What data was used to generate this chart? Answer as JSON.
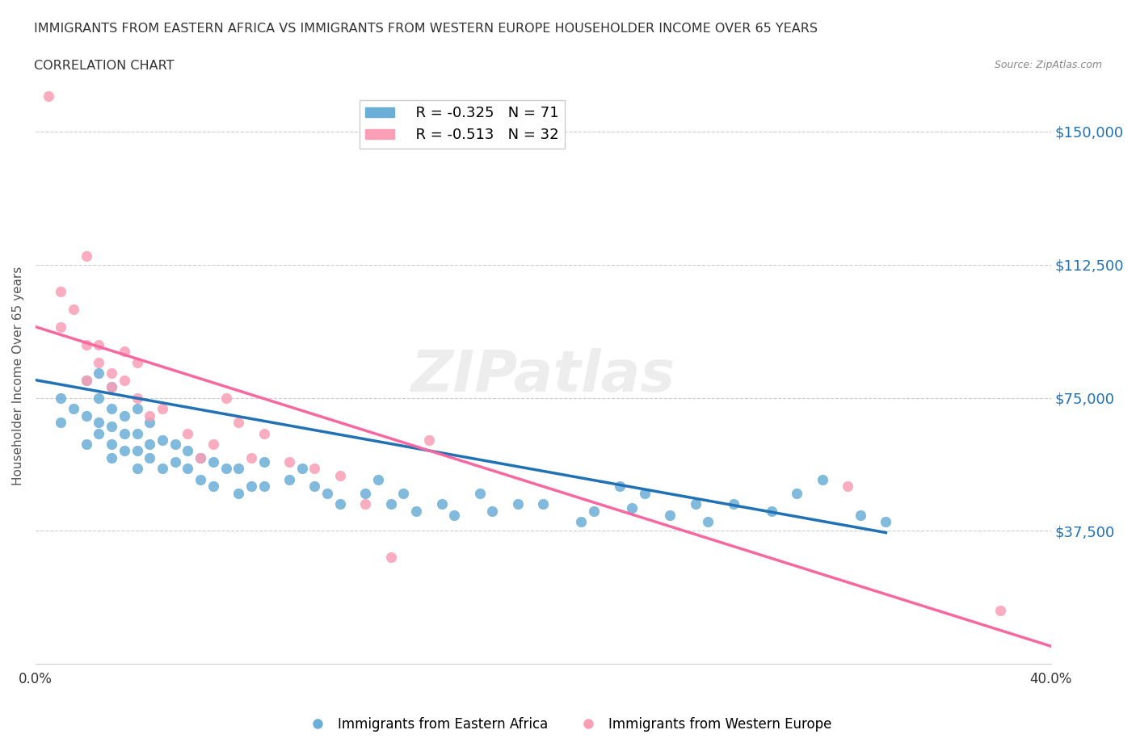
{
  "title_line1": "IMMIGRANTS FROM EASTERN AFRICA VS IMMIGRANTS FROM WESTERN EUROPE HOUSEHOLDER INCOME OVER 65 YEARS",
  "title_line2": "CORRELATION CHART",
  "source_text": "Source: ZipAtlas.com",
  "xlabel": "",
  "ylabel": "Householder Income Over 65 years",
  "xlim": [
    0.0,
    0.4
  ],
  "ylim": [
    0,
    162500
  ],
  "yticks": [
    0,
    37500,
    75000,
    112500,
    150000
  ],
  "ytick_labels": [
    "",
    "$37,500",
    "$75,000",
    "$112,500",
    "$150,000"
  ],
  "xticks": [
    0.0,
    0.05,
    0.1,
    0.15,
    0.2,
    0.25,
    0.3,
    0.35,
    0.4
  ],
  "xtick_labels": [
    "0.0%",
    "",
    "",
    "",
    "",
    "",
    "",
    "",
    "40.0%"
  ],
  "blue_color": "#6baed6",
  "pink_color": "#fa9fb5",
  "blue_line_color": "#2171b5",
  "pink_line_color": "#f768a1",
  "blue_r": -0.325,
  "blue_n": 71,
  "pink_r": -0.513,
  "pink_n": 32,
  "legend_label_blue": "Immigrants from Eastern Africa",
  "legend_label_pink": "Immigrants from Western Europe",
  "watermark": "ZIPatlas",
  "blue_scatter_x": [
    0.01,
    0.01,
    0.015,
    0.02,
    0.02,
    0.02,
    0.025,
    0.025,
    0.025,
    0.025,
    0.03,
    0.03,
    0.03,
    0.03,
    0.03,
    0.035,
    0.035,
    0.035,
    0.04,
    0.04,
    0.04,
    0.04,
    0.045,
    0.045,
    0.045,
    0.05,
    0.05,
    0.055,
    0.055,
    0.06,
    0.06,
    0.065,
    0.065,
    0.07,
    0.07,
    0.075,
    0.08,
    0.08,
    0.085,
    0.09,
    0.09,
    0.1,
    0.105,
    0.11,
    0.115,
    0.12,
    0.13,
    0.135,
    0.14,
    0.145,
    0.15,
    0.16,
    0.165,
    0.175,
    0.18,
    0.19,
    0.2,
    0.215,
    0.22,
    0.23,
    0.235,
    0.24,
    0.25,
    0.26,
    0.265,
    0.275,
    0.29,
    0.3,
    0.31,
    0.325,
    0.335
  ],
  "blue_scatter_y": [
    68000,
    75000,
    72000,
    62000,
    70000,
    80000,
    65000,
    68000,
    75000,
    82000,
    58000,
    62000,
    67000,
    72000,
    78000,
    60000,
    65000,
    70000,
    55000,
    60000,
    65000,
    72000,
    58000,
    62000,
    68000,
    55000,
    63000,
    57000,
    62000,
    55000,
    60000,
    52000,
    58000,
    50000,
    57000,
    55000,
    48000,
    55000,
    50000,
    50000,
    57000,
    52000,
    55000,
    50000,
    48000,
    45000,
    48000,
    52000,
    45000,
    48000,
    43000,
    45000,
    42000,
    48000,
    43000,
    45000,
    45000,
    40000,
    43000,
    50000,
    44000,
    48000,
    42000,
    45000,
    40000,
    45000,
    43000,
    48000,
    52000,
    42000,
    40000
  ],
  "pink_scatter_x": [
    0.005,
    0.01,
    0.01,
    0.015,
    0.02,
    0.02,
    0.02,
    0.025,
    0.025,
    0.03,
    0.03,
    0.035,
    0.035,
    0.04,
    0.04,
    0.045,
    0.05,
    0.06,
    0.065,
    0.07,
    0.075,
    0.08,
    0.085,
    0.09,
    0.1,
    0.11,
    0.12,
    0.13,
    0.14,
    0.155,
    0.32,
    0.38
  ],
  "pink_scatter_y": [
    160000,
    105000,
    95000,
    100000,
    90000,
    115000,
    80000,
    90000,
    85000,
    82000,
    78000,
    88000,
    80000,
    85000,
    75000,
    70000,
    72000,
    65000,
    58000,
    62000,
    75000,
    68000,
    58000,
    65000,
    57000,
    55000,
    53000,
    45000,
    30000,
    63000,
    50000,
    15000
  ],
  "blue_trend_x": [
    0.0,
    0.335
  ],
  "blue_trend_y": [
    80000,
    37000
  ],
  "pink_trend_x": [
    0.0,
    0.4
  ],
  "pink_trend_y": [
    95000,
    5000
  ]
}
